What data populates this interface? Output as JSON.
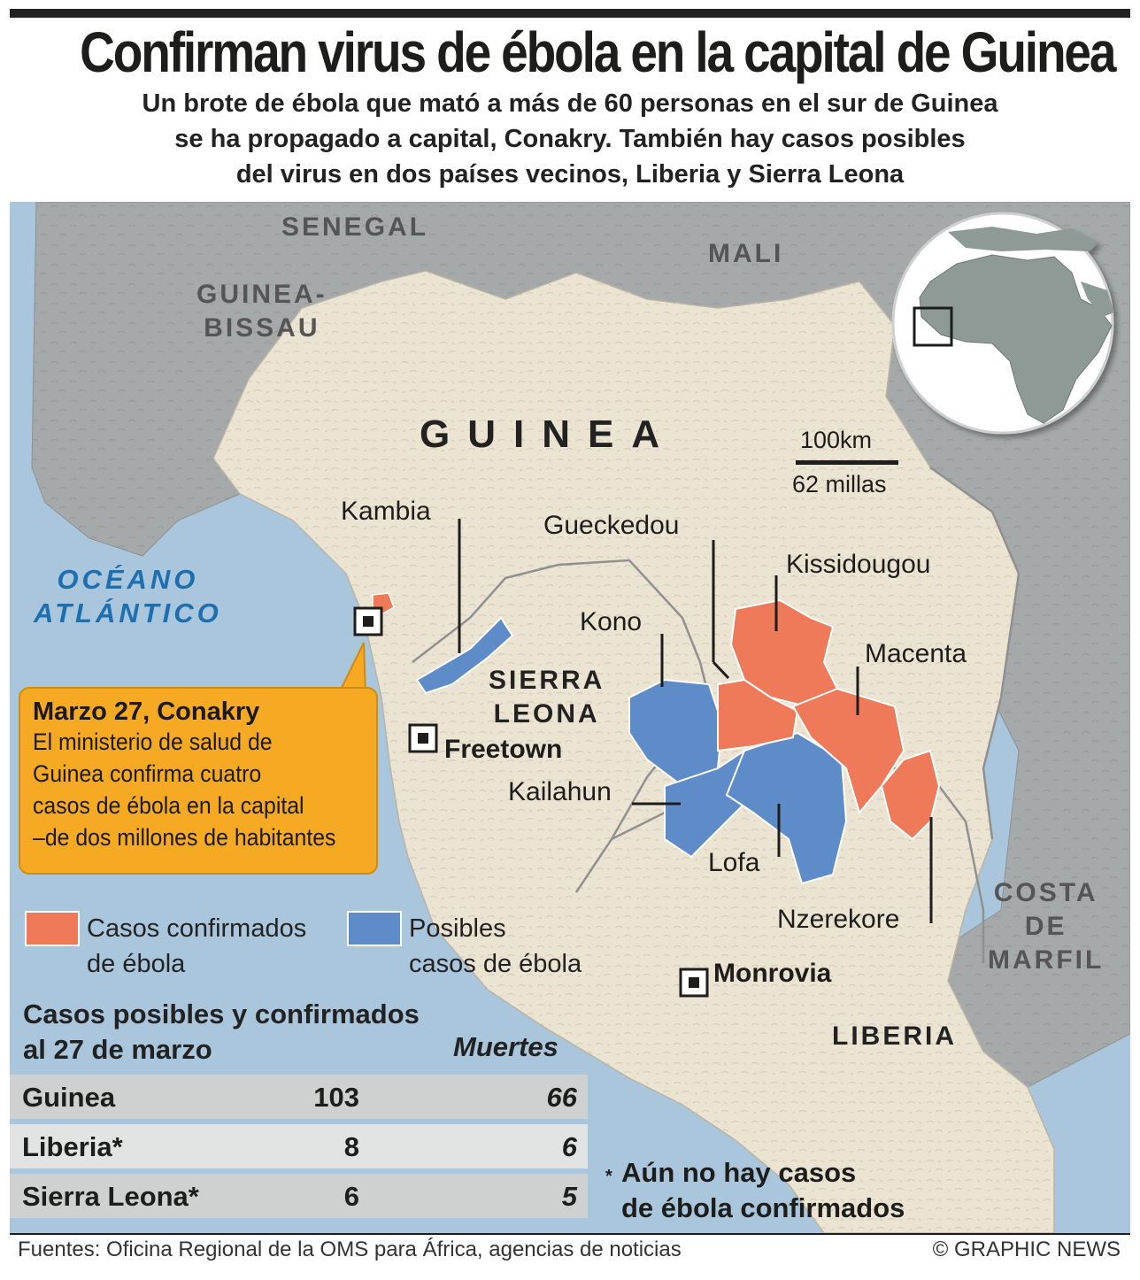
{
  "header": {
    "title": "Confirman virus de ébola en la capital de Guinea",
    "subtitle_lines": [
      "Un brote de ébola que mató a más de 60 personas en el sur de Guinea",
      "se ha propagado a capital, Conakry. También hay casos posibles",
      "del virus en dos países vecinos, Liberia y Sierra Leona"
    ]
  },
  "map": {
    "countries": {
      "senegal": "SENEGAL",
      "mali": "MALI",
      "guinea_bissau": [
        "GUINEA-",
        "BISSAU"
      ],
      "guinea": "GUINEA",
      "sierra_leona": [
        "SIERRA",
        "LEONA"
      ],
      "liberia": "LIBERIA",
      "costa_de_marfil": [
        "COSTA",
        "DE",
        "MARFIL"
      ]
    },
    "ocean": [
      "OCÉANO",
      "ATLÁNTICO"
    ],
    "scale": {
      "km": "100km",
      "miles": "62 millas"
    },
    "regions": {
      "kambia": "Kambia",
      "gueckedou": "Gueckedou",
      "kissidougou": "Kissidougou",
      "kono": "Kono",
      "macenta": "Macenta",
      "kailahun": "Kailahun",
      "lofa": "Lofa",
      "nzerekore": "Nzerekore"
    },
    "cities": {
      "freetown": "Freetown",
      "monrovia": "Monrovia"
    },
    "colors": {
      "sea": "#a9c6dc",
      "land": "#ece4d2",
      "neighbor": "#a6a9a9",
      "confirmed": "#ef7a5a",
      "possible": "#5d8cc9",
      "callout": "#f6a923"
    }
  },
  "callout": {
    "heading": "Marzo 27, Conakry",
    "body_lines": [
      "El ministerio de salud de",
      "Guinea confirma cuatro",
      "casos de ébola en la capital",
      "–de dos millones de habitantes"
    ]
  },
  "legend": {
    "confirmed": [
      "Casos confirmados",
      "de ébola"
    ],
    "possible": [
      "Posibles",
      "casos de ébola"
    ]
  },
  "stats": {
    "title_lines": [
      "Casos posibles y confirmados",
      "al 27 de marzo"
    ],
    "deaths_header": "Muertes",
    "rows": [
      {
        "country": "Guinea",
        "cases": "103",
        "deaths": "66"
      },
      {
        "country": "Liberia*",
        "cases": "8",
        "deaths": "6"
      },
      {
        "country": "Sierra Leona*",
        "cases": "6",
        "deaths": "5"
      }
    ]
  },
  "note": {
    "asterisk": "*",
    "lines": [
      "Aún no hay casos",
      "de ébola confirmados"
    ]
  },
  "footer": {
    "source": "Fuentes: Oficina Regional de la OMS para África, agencias de noticias",
    "credit": "© GRAPHIC NEWS"
  }
}
